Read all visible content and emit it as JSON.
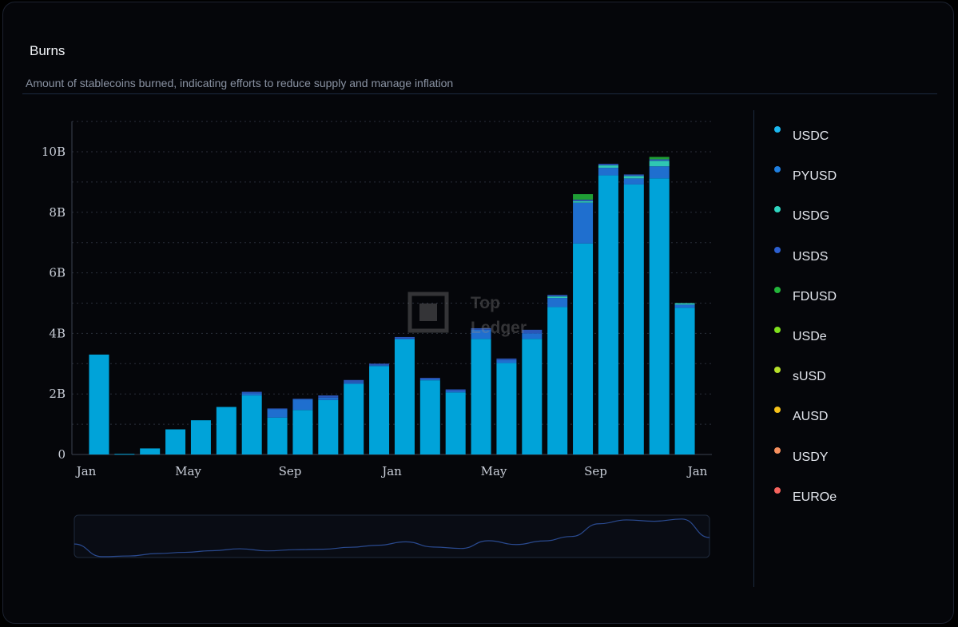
{
  "card": {
    "title": "Burns",
    "subtitle": "Amount of stablecoins burned, indicating efforts to reduce supply and manage inflation"
  },
  "watermark": {
    "line1": "Top",
    "line2": "Ledger"
  },
  "legend": [
    {
      "label": "USDC",
      "color": "#1bb8f0"
    },
    {
      "label": "PYUSD",
      "color": "#1f7fe0"
    },
    {
      "label": "USDG",
      "color": "#2fd6c0"
    },
    {
      "label": "USDS",
      "color": "#2c5fd0"
    },
    {
      "label": "FDUSD",
      "color": "#23b53a"
    },
    {
      "label": "USDe",
      "color": "#7fe01d"
    },
    {
      "label": "sUSD",
      "color": "#b6e02a"
    },
    {
      "label": "AUSD",
      "color": "#f6c21a"
    },
    {
      "label": "USDY",
      "color": "#f7905e"
    },
    {
      "label": "EUROe",
      "color": "#f7645e"
    }
  ],
  "chart_data": {
    "type": "bar",
    "stacked": true,
    "y_ticks": [
      "0",
      "2B",
      "4B",
      "6B",
      "8B",
      "10B"
    ],
    "y_tick_values": [
      0,
      2,
      4,
      6,
      8,
      10
    ],
    "y_unit": "B",
    "ylim": [
      0,
      11
    ],
    "x_ticks": [
      "Jan",
      "May",
      "Sep",
      "Jan",
      "May",
      "Sep",
      "Jan"
    ],
    "x_tick_months": [
      0,
      4,
      8,
      12,
      16,
      20,
      24
    ],
    "grid": true,
    "legend_position": "right",
    "months": [
      1,
      2,
      3,
      4,
      5,
      6,
      7,
      8,
      9,
      10,
      11,
      12,
      13,
      14,
      15,
      16,
      17,
      18,
      19,
      20,
      21,
      22,
      23,
      24
    ],
    "series": [
      {
        "name": "USDC",
        "color": "#00a3d9",
        "values": [
          3.3,
          0.02,
          0.2,
          0.83,
          1.13,
          1.57,
          1.95,
          1.22,
          1.47,
          1.8,
          2.33,
          2.92,
          3.8,
          2.45,
          2.05,
          3.82,
          3.02,
          3.82,
          4.87,
          6.97,
          9.22,
          8.92,
          9.12,
          4.85
        ]
      },
      {
        "name": "PYUSD",
        "color": "#1f6fcf",
        "values": [
          0,
          0,
          0,
          0,
          0,
          0,
          0.07,
          0.27,
          0.35,
          0.08,
          0.05,
          0.03,
          0.03,
          0.03,
          0.05,
          0.3,
          0.1,
          0.18,
          0.3,
          1.35,
          0.25,
          0.2,
          0.4,
          0.1
        ]
      },
      {
        "name": "USDG",
        "color": "#2fc7b3",
        "values": [
          0,
          0,
          0,
          0,
          0,
          0,
          0,
          0,
          0,
          0,
          0,
          0,
          0,
          0,
          0,
          0,
          0,
          0,
          0.05,
          0.05,
          0.08,
          0.08,
          0.18,
          0.05
        ]
      },
      {
        "name": "USDS",
        "color": "#2a56b8",
        "values": [
          0,
          0,
          0,
          0,
          0,
          0,
          0.05,
          0.03,
          0.02,
          0.07,
          0.08,
          0.05,
          0.05,
          0.05,
          0.05,
          0.05,
          0.05,
          0.12,
          0.05,
          0.05,
          0.05,
          0.05,
          0.05,
          0
        ]
      },
      {
        "name": "FDUSD",
        "color": "#1f9e35",
        "values": [
          0,
          0,
          0,
          0,
          0,
          0,
          0,
          0,
          0,
          0,
          0,
          0,
          0,
          0,
          0,
          0,
          0,
          0,
          0,
          0.18,
          0,
          0,
          0.08,
          0
        ]
      }
    ]
  }
}
